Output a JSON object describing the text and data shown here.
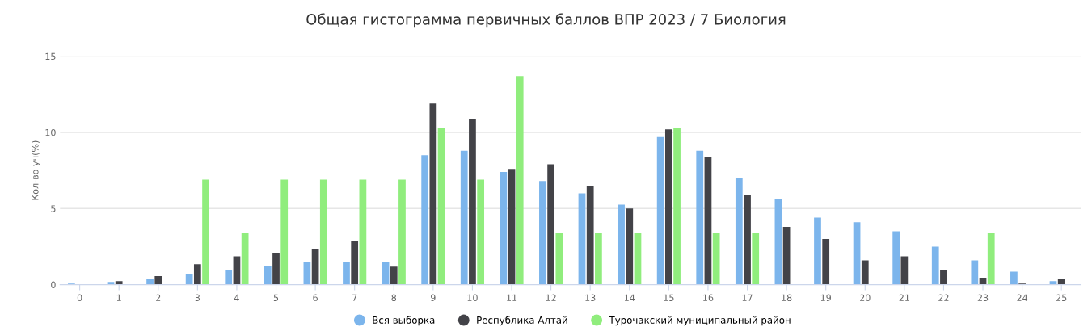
{
  "chart_data": {
    "type": "bar",
    "title": "Общая гистограмма первичных баллов ВПР 2023 / 7 Биология",
    "ylabel": "Кол-во уч(%)",
    "categories": [
      "0",
      "1",
      "2",
      "3",
      "4",
      "5",
      "6",
      "7",
      "8",
      "9",
      "10",
      "11",
      "12",
      "13",
      "14",
      "15",
      "16",
      "17",
      "18",
      "19",
      "20",
      "21",
      "22",
      "23",
      "24",
      "25"
    ],
    "series": [
      {
        "name": "Вся выборка",
        "color": "#7cb5ec",
        "values": [
          0.07,
          0.18,
          0.35,
          0.67,
          0.97,
          1.25,
          1.46,
          1.46,
          1.46,
          8.5,
          8.8,
          7.4,
          6.8,
          6.0,
          5.25,
          9.7,
          8.8,
          7.0,
          5.6,
          4.4,
          4.1,
          3.5,
          2.5,
          1.6,
          0.86,
          0.23
        ]
      },
      {
        "name": "Республика Алтай",
        "color": "#434348",
        "values": [
          null,
          0.23,
          0.56,
          1.35,
          1.86,
          2.07,
          2.35,
          2.86,
          1.18,
          11.9,
          10.9,
          7.6,
          7.9,
          6.5,
          5.0,
          10.2,
          8.4,
          5.9,
          3.8,
          3.0,
          1.6,
          1.86,
          0.97,
          0.46,
          0.07,
          0.35
        ]
      },
      {
        "name": "Турочакский муниципальный район",
        "color": "#90ed7d",
        "values": [
          null,
          null,
          null,
          6.9,
          3.4,
          6.9,
          6.9,
          6.9,
          6.9,
          10.3,
          6.9,
          13.7,
          3.4,
          3.4,
          3.4,
          10.3,
          3.4,
          3.4,
          null,
          null,
          null,
          null,
          null,
          3.4,
          null,
          null
        ]
      }
    ],
    "ylim": [
      0,
      15
    ],
    "yticks": [
      0,
      5,
      10,
      15
    ],
    "grid": "y",
    "legend": "bottom"
  }
}
